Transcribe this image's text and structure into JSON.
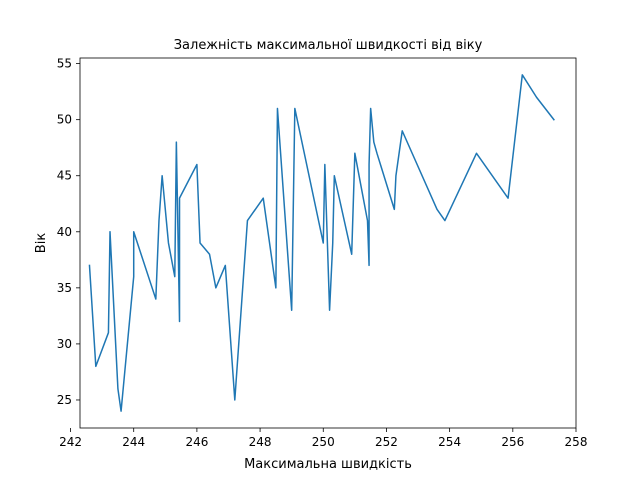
{
  "chart_data": {
    "type": "line",
    "title": "Залежність максимальної швидкості від віку",
    "xlabel": "Максимальна швидкість",
    "ylabel": "Вік",
    "xlim": [
      242.3,
      258.0
    ],
    "ylim": [
      22.5,
      55.5
    ],
    "xticks": [
      242,
      244,
      246,
      248,
      250,
      252,
      254,
      256,
      258
    ],
    "yticks": [
      25,
      30,
      35,
      40,
      45,
      50,
      55
    ],
    "grid": false,
    "line_color": "#1f77b4",
    "series": [
      {
        "x": [
          242.6,
          242.8,
          243.2,
          243.25,
          243.5,
          243.6,
          244.0,
          244.0,
          244.7,
          244.8,
          244.9,
          245.1,
          245.3,
          245.35,
          245.45,
          245.45,
          246.0,
          246.1,
          246.4,
          246.6,
          246.9,
          247.2,
          247.6,
          248.1,
          248.5,
          248.55,
          249.0,
          249.1,
          250.0,
          250.05,
          250.2,
          250.3,
          250.35,
          250.9,
          251.0,
          251.4,
          251.45,
          251.45,
          251.5,
          251.6,
          251.7,
          252.25,
          252.3,
          252.5,
          253.6,
          253.85,
          254.85,
          255.85,
          256.3,
          256.75,
          257.3
        ],
        "y": [
          37,
          28,
          31,
          40,
          26,
          24,
          36,
          40,
          34,
          41,
          45,
          39,
          36,
          48,
          32,
          43,
          46,
          39,
          38,
          35,
          37,
          25,
          41,
          43,
          35,
          51,
          33,
          51,
          39,
          46,
          33,
          39,
          45,
          38,
          47,
          41,
          37,
          46,
          51,
          48,
          47,
          42,
          45,
          49,
          42,
          41,
          47,
          43,
          54,
          52,
          50
        ]
      }
    ]
  }
}
